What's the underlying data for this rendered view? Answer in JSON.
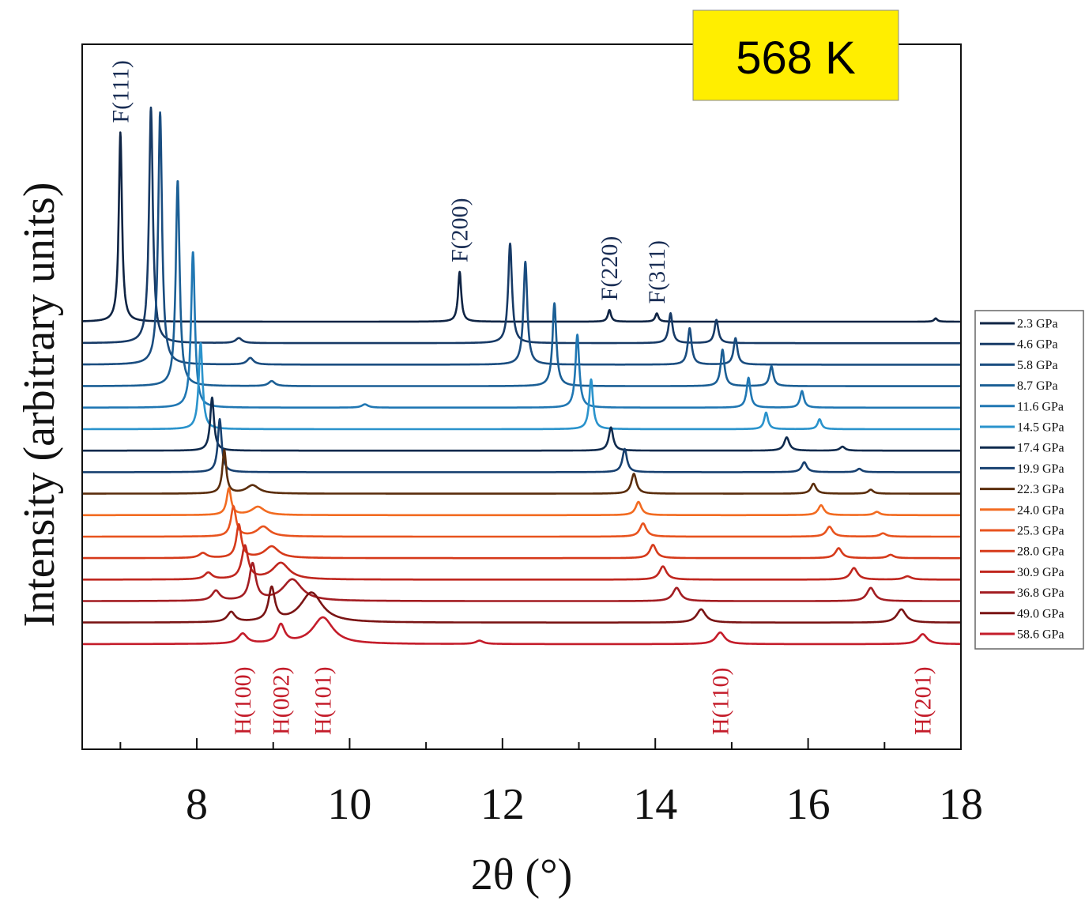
{
  "chart_data": {
    "type": "line",
    "title": "",
    "xlabel": "2θ (°)",
    "ylabel": "Intensity (arbitrary units)",
    "xlim": [
      6.5,
      18
    ],
    "xticks": [
      "8",
      "10",
      "12",
      "14",
      "16",
      "18"
    ],
    "xtick_values": [
      8,
      10,
      12,
      14,
      16,
      18
    ],
    "minor_xtick_values": [
      7,
      9,
      11,
      13,
      15,
      17
    ],
    "badge": {
      "text": "568 K",
      "color": "#ffee00"
    },
    "legend_position": "right",
    "series": [
      {
        "name": "2.3 GPa",
        "color": "#0f2444",
        "offset": 0,
        "peaks": [
          [
            7.0,
            57,
            0.025
          ],
          [
            11.44,
            15,
            0.025
          ],
          [
            13.4,
            3.5,
            0.025
          ],
          [
            14.02,
            2.5,
            0.025
          ],
          [
            17.67,
            1,
            0.025
          ]
        ]
      },
      {
        "name": "4.6 GPa",
        "color": "#173a66",
        "offset": 1,
        "peaks": [
          [
            7.4,
            71,
            0.03
          ],
          [
            8.55,
            1.5,
            0.05
          ],
          [
            12.1,
            30,
            0.03
          ],
          [
            14.2,
            9,
            0.03
          ],
          [
            14.8,
            7,
            0.03
          ]
        ]
      },
      {
        "name": "5.8 GPa",
        "color": "#1a4d80",
        "offset": 2,
        "peaks": [
          [
            7.52,
            76,
            0.03
          ],
          [
            8.7,
            2,
            0.05
          ],
          [
            12.3,
            31,
            0.03
          ],
          [
            14.45,
            11,
            0.03
          ],
          [
            15.05,
            8,
            0.03
          ]
        ]
      },
      {
        "name": "8.7 GPa",
        "color": "#1b5f95",
        "offset": 3,
        "peaks": [
          [
            7.75,
            62,
            0.03
          ],
          [
            8.98,
            1.5,
            0.05
          ],
          [
            12.68,
            25,
            0.03
          ],
          [
            14.88,
            11,
            0.03
          ],
          [
            15.52,
            6,
            0.03
          ]
        ]
      },
      {
        "name": "11.6 GPa",
        "color": "#2077b3",
        "offset": 4,
        "peaks": [
          [
            7.95,
            47,
            0.03
          ],
          [
            10.2,
            1,
            0.05
          ],
          [
            12.98,
            22,
            0.03
          ],
          [
            15.22,
            9,
            0.03
          ],
          [
            15.92,
            5,
            0.03
          ]
        ]
      },
      {
        "name": "14.5 GPa",
        "color": "#2a93cc",
        "offset": 5,
        "peaks": [
          [
            8.05,
            26,
            0.03
          ],
          [
            13.16,
            15,
            0.03
          ],
          [
            15.45,
            5,
            0.03
          ],
          [
            16.15,
            3,
            0.03
          ]
        ]
      },
      {
        "name": "17.4 GPa",
        "color": "#0f2a4d",
        "offset": 6,
        "peaks": [
          [
            8.2,
            16,
            0.03
          ],
          [
            13.42,
            7,
            0.035
          ],
          [
            15.72,
            4,
            0.04
          ],
          [
            16.45,
            1.2,
            0.04
          ]
        ]
      },
      {
        "name": "19.9 GPa",
        "color": "#174070",
        "offset": 7,
        "peaks": [
          [
            8.3,
            16,
            0.03
          ],
          [
            13.6,
            7,
            0.035
          ],
          [
            15.95,
            3,
            0.04
          ],
          [
            16.67,
            1,
            0.04
          ]
        ]
      },
      {
        "name": "22.3 GPa",
        "color": "#5a2d0c",
        "offset": 8,
        "peaks": [
          [
            8.36,
            13,
            0.03
          ],
          [
            8.73,
            2.5,
            0.1
          ],
          [
            13.72,
            6,
            0.04
          ],
          [
            16.07,
            3,
            0.04
          ],
          [
            16.82,
            1.2,
            0.04
          ]
        ]
      },
      {
        "name": "24.0 GPa",
        "color": "#f26b21",
        "offset": 9,
        "peaks": [
          [
            8.42,
            8,
            0.035
          ],
          [
            8.8,
            2.5,
            0.1
          ],
          [
            13.78,
            4,
            0.045
          ],
          [
            16.17,
            3,
            0.045
          ],
          [
            16.9,
            1,
            0.045
          ]
        ]
      },
      {
        "name": "25.3 GPa",
        "color": "#e8531e",
        "offset": 10,
        "peaks": [
          [
            8.48,
            9,
            0.04
          ],
          [
            8.87,
            3,
            0.1
          ],
          [
            13.84,
            4,
            0.05
          ],
          [
            16.28,
            3,
            0.05
          ],
          [
            16.98,
            1,
            0.05
          ]
        ]
      },
      {
        "name": "28.0 GPa",
        "color": "#d63a1a",
        "offset": 11,
        "peaks": [
          [
            8.08,
            1.5,
            0.06
          ],
          [
            8.55,
            10,
            0.04
          ],
          [
            8.98,
            3.5,
            0.11
          ],
          [
            13.97,
            4,
            0.05
          ],
          [
            16.4,
            3,
            0.05
          ],
          [
            17.08,
            1,
            0.05
          ]
        ]
      },
      {
        "name": "30.9 GPa",
        "color": "#c0261e",
        "offset": 12,
        "peaks": [
          [
            8.15,
            2,
            0.06
          ],
          [
            8.63,
            10,
            0.05
          ],
          [
            9.1,
            5,
            0.13
          ],
          [
            14.1,
            4,
            0.055
          ],
          [
            16.6,
            3.5,
            0.055
          ],
          [
            17.3,
            1,
            0.06
          ]
        ]
      },
      {
        "name": "36.8 GPa",
        "color": "#a31d22",
        "offset": 13,
        "peaks": [
          [
            8.25,
            3,
            0.06
          ],
          [
            8.73,
            11,
            0.05
          ],
          [
            9.25,
            6.5,
            0.15
          ],
          [
            14.28,
            4,
            0.06
          ],
          [
            16.82,
            4,
            0.06
          ]
        ]
      },
      {
        "name": "49.0 GPa",
        "color": "#7a1414",
        "offset": 14,
        "peaks": [
          [
            8.45,
            3,
            0.06
          ],
          [
            8.98,
            10,
            0.05
          ],
          [
            9.5,
            9,
            0.17
          ],
          [
            14.6,
            4,
            0.07
          ],
          [
            17.22,
            4,
            0.07
          ]
        ]
      },
      {
        "name": "58.6 GPa",
        "color": "#c41c2a",
        "offset": 15,
        "peaks": [
          [
            8.6,
            3,
            0.07
          ],
          [
            9.1,
            5.5,
            0.06
          ],
          [
            9.65,
            8,
            0.16
          ],
          [
            11.7,
            1,
            0.06
          ],
          [
            14.85,
            3.5,
            0.07
          ],
          [
            17.5,
            3,
            0.07
          ]
        ]
      }
    ],
    "annotations": [
      {
        "label": "F(111)",
        "x": 7.0,
        "family": "F"
      },
      {
        "label": "F(200)",
        "x": 11.44,
        "family": "F"
      },
      {
        "label": "F(220)",
        "x": 13.4,
        "family": "F"
      },
      {
        "label": "F(311)",
        "x": 14.02,
        "family": "F"
      },
      {
        "label": "H(100)",
        "x": 8.6,
        "family": "H"
      },
      {
        "label": "H(002)",
        "x": 9.1,
        "family": "H"
      },
      {
        "label": "H(101)",
        "x": 9.65,
        "family": "H"
      },
      {
        "label": "H(110)",
        "x": 14.85,
        "family": "H"
      },
      {
        "label": "H(201)",
        "x": 17.5,
        "family": "H"
      }
    ]
  }
}
